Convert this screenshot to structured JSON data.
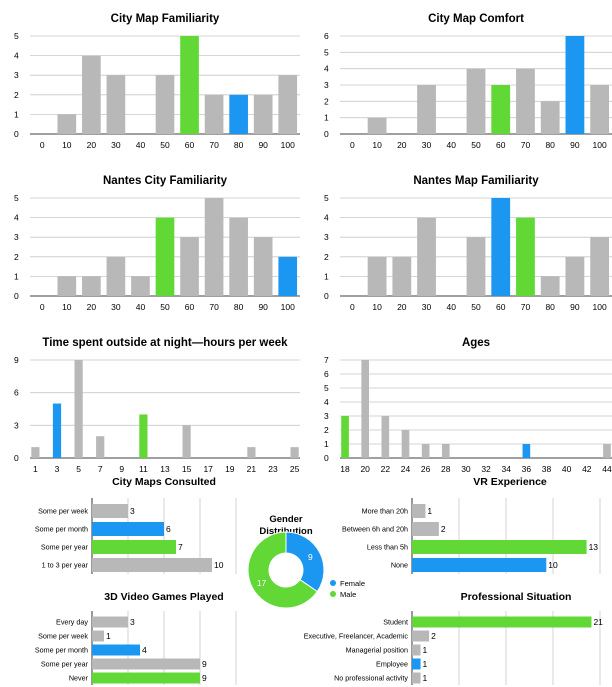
{
  "colors": {
    "gray": "#b8b8b8",
    "green": "#61d836",
    "blue": "#1b97f1"
  },
  "chart_data": [
    {
      "id": "city_map_familiarity",
      "type": "bar",
      "title": "City Map Familiarity",
      "categories": [
        "0",
        "10",
        "20",
        "30",
        "40",
        "50",
        "60",
        "70",
        "80",
        "90",
        "100"
      ],
      "values": [
        0,
        1,
        4,
        3,
        0,
        3,
        5,
        2,
        2,
        2,
        3
      ],
      "colors": [
        "gray",
        "gray",
        "gray",
        "gray",
        "gray",
        "gray",
        "green",
        "gray",
        "blue",
        "gray",
        "gray"
      ],
      "ylim": [
        0,
        5
      ],
      "yticks": [
        0,
        1,
        2,
        3,
        4,
        5
      ],
      "grid": true
    },
    {
      "id": "city_map_comfort",
      "type": "bar",
      "title": "City Map Comfort",
      "categories": [
        "0",
        "10",
        "20",
        "30",
        "40",
        "50",
        "60",
        "70",
        "80",
        "90",
        "100"
      ],
      "values": [
        0,
        1,
        0,
        3,
        0,
        4,
        3,
        4,
        2,
        6,
        3
      ],
      "colors": [
        "gray",
        "gray",
        "gray",
        "gray",
        "gray",
        "gray",
        "green",
        "gray",
        "gray",
        "blue",
        "gray"
      ],
      "ylim": [
        0,
        6
      ],
      "yticks": [
        0,
        1,
        2,
        3,
        4,
        5,
        6
      ],
      "grid": true
    },
    {
      "id": "nantes_city_familiarity",
      "type": "bar",
      "title": "Nantes City Familiarity",
      "categories": [
        "0",
        "10",
        "20",
        "30",
        "40",
        "50",
        "60",
        "70",
        "80",
        "90",
        "100"
      ],
      "values": [
        0,
        1,
        1,
        2,
        1,
        4,
        3,
        5,
        4,
        3,
        2
      ],
      "colors": [
        "gray",
        "gray",
        "gray",
        "gray",
        "gray",
        "green",
        "gray",
        "gray",
        "gray",
        "gray",
        "blue"
      ],
      "ylim": [
        0,
        5
      ],
      "yticks": [
        0,
        1,
        2,
        3,
        4,
        5
      ],
      "grid": true
    },
    {
      "id": "nantes_map_familiarity",
      "type": "bar",
      "title": "Nantes Map Familiarity",
      "categories": [
        "0",
        "10",
        "20",
        "30",
        "40",
        "50",
        "60",
        "70",
        "80",
        "90",
        "100"
      ],
      "values": [
        0,
        2,
        2,
        4,
        0,
        3,
        5,
        4,
        1,
        2,
        3
      ],
      "colors": [
        "gray",
        "gray",
        "gray",
        "gray",
        "gray",
        "gray",
        "blue",
        "green",
        "gray",
        "gray",
        "gray"
      ],
      "ylim": [
        0,
        5
      ],
      "yticks": [
        0,
        1,
        2,
        3,
        4,
        5
      ],
      "grid": true
    },
    {
      "id": "time_outside_night",
      "type": "bar",
      "title": "Time spent outside at night—hours per week",
      "x": [
        1,
        2,
        3,
        4,
        5,
        6,
        7,
        8,
        9,
        10,
        11,
        12,
        13,
        14,
        15,
        16,
        17,
        18,
        19,
        20,
        21,
        22,
        23,
        24,
        25
      ],
      "values": [
        1,
        0,
        5,
        0,
        9,
        0,
        2,
        0,
        0,
        0,
        4,
        0,
        0,
        0,
        3,
        0,
        0,
        0,
        0,
        0,
        1,
        0,
        0,
        0,
        1
      ],
      "colors": [
        "gray",
        "gray",
        "blue",
        "gray",
        "gray",
        "gray",
        "gray",
        "gray",
        "gray",
        "gray",
        "green",
        "gray",
        "gray",
        "gray",
        "gray",
        "gray",
        "gray",
        "gray",
        "gray",
        "gray",
        "gray",
        "gray",
        "gray",
        "gray",
        "gray"
      ],
      "xticklabels": [
        "1",
        "3",
        "5",
        "7",
        "9",
        "11",
        "13",
        "15",
        "17",
        "19",
        "21",
        "23",
        "25"
      ],
      "ylim": [
        0,
        9
      ],
      "yticks": [
        0,
        3,
        6,
        9
      ],
      "grid": true
    },
    {
      "id": "ages",
      "type": "bar",
      "title": "Ages",
      "x": [
        18,
        19,
        20,
        21,
        22,
        23,
        24,
        25,
        26,
        27,
        28,
        29,
        30,
        31,
        32,
        33,
        34,
        35,
        36,
        37,
        38,
        39,
        40,
        41,
        42,
        43,
        44
      ],
      "values": [
        3,
        0,
        7,
        0,
        3,
        0,
        2,
        0,
        1,
        0,
        1,
        0,
        0,
        0,
        0,
        0,
        0,
        0,
        1,
        0,
        0,
        0,
        0,
        0,
        0,
        0,
        1
      ],
      "colors": [
        "green",
        "gray",
        "gray",
        "gray",
        "gray",
        "gray",
        "gray",
        "gray",
        "gray",
        "gray",
        "gray",
        "gray",
        "gray",
        "gray",
        "gray",
        "gray",
        "gray",
        "gray",
        "blue",
        "gray",
        "gray",
        "gray",
        "gray",
        "gray",
        "gray",
        "gray",
        "gray"
      ],
      "xticklabels": [
        "18",
        "20",
        "22",
        "24",
        "26",
        "28",
        "30",
        "32",
        "34",
        "36",
        "38",
        "40",
        "42",
        "44"
      ],
      "ylim": [
        0,
        7
      ],
      "yticks": [
        0,
        1,
        2,
        3,
        4,
        5,
        6,
        7
      ],
      "grid": true
    },
    {
      "id": "city_maps_consulted",
      "type": "bar",
      "orientation": "horizontal",
      "title": "City Maps Consulted",
      "categories": [
        "Some per week",
        "Some per month",
        "Some per year",
        "1 to 3 per year"
      ],
      "values": [
        3,
        6,
        7,
        10
      ],
      "colors": [
        "gray",
        "blue",
        "green",
        "gray"
      ],
      "xlim": [
        0,
        12
      ],
      "grid": true
    },
    {
      "id": "vr_experience",
      "type": "bar",
      "orientation": "horizontal",
      "title": "VR Experience",
      "categories": [
        "More than 20h",
        "Between 6h and 20h",
        "Less than 5h",
        "None"
      ],
      "values": [
        1,
        2,
        13,
        10
      ],
      "colors": [
        "gray",
        "gray",
        "green",
        "blue"
      ],
      "xlim": [
        0,
        14
      ],
      "grid": true
    },
    {
      "id": "gender_distribution",
      "type": "pie",
      "donut": true,
      "title": "Gender Distribution",
      "categories": [
        "Female",
        "Male"
      ],
      "values": [
        9,
        17
      ],
      "colors": [
        "blue",
        "green"
      ],
      "legend": "right"
    },
    {
      "id": "video_games_played",
      "type": "bar",
      "orientation": "horizontal",
      "title": "3D Video Games Played",
      "categories": [
        "Every day",
        "Some per week",
        "Some per month",
        "Some per year",
        "Never"
      ],
      "values": [
        3,
        1,
        4,
        9,
        9
      ],
      "colors": [
        "gray",
        "gray",
        "blue",
        "gray",
        "green"
      ],
      "xlim": [
        0,
        12
      ],
      "grid": true
    },
    {
      "id": "professional_situation",
      "type": "bar",
      "orientation": "horizontal",
      "title": "Professional Situation",
      "categories": [
        "Student",
        "Executive, Freelancer, Academic",
        "Managerial position",
        "Employee",
        "No professional activity"
      ],
      "values": [
        21,
        2,
        1,
        1,
        1
      ],
      "colors": [
        "green",
        "gray",
        "gray",
        "blue",
        "gray"
      ],
      "xlim": [
        0,
        22
      ],
      "grid": true
    }
  ]
}
